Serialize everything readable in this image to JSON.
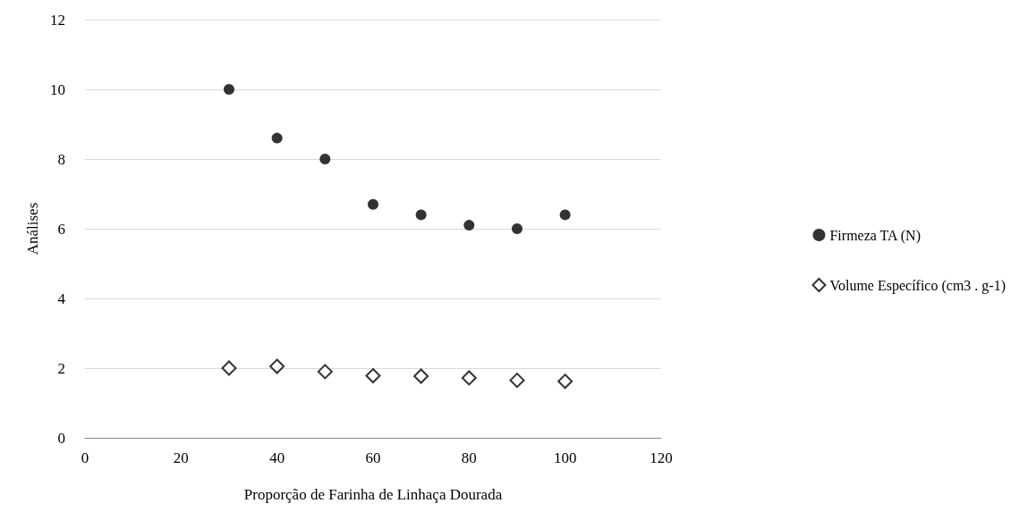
{
  "chart_data": {
    "type": "scatter",
    "xlabel": "Proporção de Farinha de Linhaça Dourada",
    "ylabel": "Análises",
    "x": [
      30,
      40,
      50,
      60,
      70,
      80,
      90,
      100
    ],
    "series": [
      {
        "name": "Firmeza TA (N)",
        "color": "#000000",
        "marker": "circle",
        "values": [
          10.0,
          8.6,
          8.0,
          6.7,
          6.4,
          6.1,
          6.0,
          6.4
        ]
      },
      {
        "name": "Volume Específico (cm3 . g-1)",
        "color": "#000000",
        "marker": "diamond",
        "values": [
          2.0,
          2.05,
          1.9,
          1.78,
          1.77,
          1.72,
          1.65,
          1.62
        ]
      }
    ],
    "xlim": [
      0,
      120
    ],
    "xticks": [
      0,
      20,
      40,
      60,
      80,
      100,
      120
    ],
    "ylim": [
      0,
      12
    ],
    "yticks": [
      0,
      2,
      4,
      6,
      8,
      10,
      12
    ],
    "grid": "y",
    "legend": "right"
  }
}
